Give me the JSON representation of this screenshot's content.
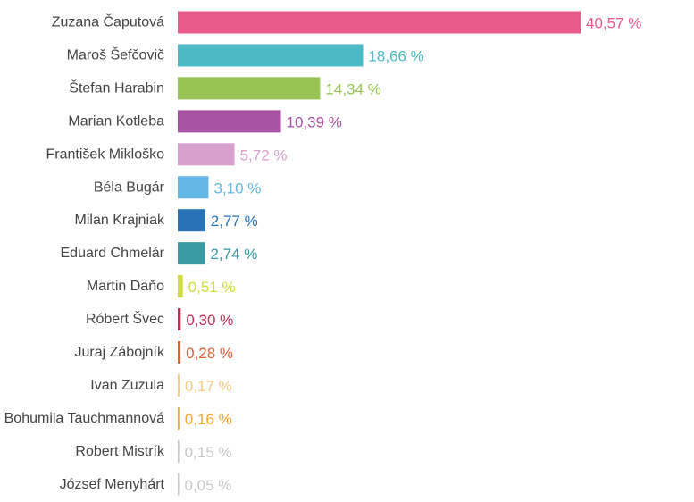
{
  "chart_data": {
    "type": "bar",
    "orientation": "horizontal",
    "title": "",
    "xlabel": "",
    "ylabel": "",
    "grid": false,
    "xlim": [
      0,
      40.57
    ],
    "value_suffix": " %",
    "categories": [
      "Zuzana Čaputová",
      "Maroš Šefčovič",
      "Štefan Harabin",
      "Marian Kotleba",
      "František Mikloško",
      "Béla Bugár",
      "Milan Krajniak",
      "Eduard Chmelár",
      "Martin Daňo",
      "Róbert Švec",
      "Juraj Zábojník",
      "Ivan Zuzula",
      "Bohumila Tauchmannová",
      "Robert Mistrík",
      "József Menyhárt"
    ],
    "values": [
      40.57,
      18.66,
      14.34,
      10.39,
      5.72,
      3.1,
      2.77,
      2.74,
      0.51,
      0.3,
      0.28,
      0.17,
      0.16,
      0.15,
      0.05
    ],
    "value_labels": [
      "40,57 %",
      "18,66 %",
      "14,34 %",
      "10,39 %",
      "5,72 %",
      "3,10 %",
      "2,77 %",
      "2,74 %",
      "0,51 %",
      "0,30 %",
      "0,28 %",
      "0,17 %",
      "0,16 %",
      "0,15 %",
      "0,05 %"
    ],
    "colors": [
      "#e85a8a",
      "#4cbac6",
      "#98c455",
      "#a852a4",
      "#d8a0cc",
      "#63b8e8",
      "#2a72b8",
      "#3a9aa4",
      "#cedc3e",
      "#c0305a",
      "#e06038",
      "#f5cc80",
      "#f2a838",
      "#c8c8c8",
      "#c8c8c8"
    ]
  }
}
